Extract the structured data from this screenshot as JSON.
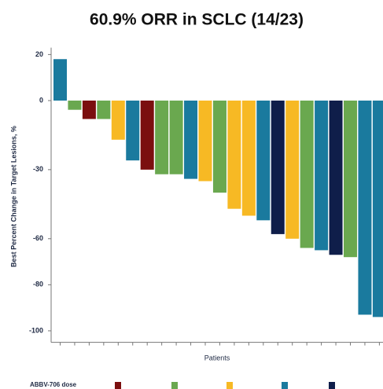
{
  "chart_data": {
    "type": "bar",
    "title": "60.9% ORR in SCLC (14/23)",
    "ylabel": "Best Percent Change in Target Lesions, %",
    "xlabel": "Patients",
    "legend_title": "ABBV-706 dose",
    "categories": [
      null,
      null,
      null,
      null,
      null,
      null,
      null,
      null,
      null,
      null,
      null,
      null,
      null,
      null,
      null,
      null,
      null,
      null,
      null,
      null,
      null,
      null,
      null
    ],
    "values": [
      18,
      -4,
      -8,
      -8,
      -17,
      -26,
      -30,
      -32,
      -32,
      -34,
      -35,
      -40,
      -47,
      -50,
      -52,
      -58,
      -60,
      -64,
      -65,
      -67,
      -68,
      -93,
      -94
    ],
    "colors": [
      "#1a7a9e",
      "#6aa84f",
      "#7b0f0f",
      "#6aa84f",
      "#f7b924",
      "#1a7a9e",
      "#7b0f0f",
      "#6aa84f",
      "#6aa84f",
      "#1a7a9e",
      "#f7b924",
      "#6aa84f",
      "#f7b924",
      "#f7b924",
      "#1a7a9e",
      "#0f1e4a",
      "#f7b924",
      "#6aa84f",
      "#1a7a9e",
      "#0f1e4a",
      "#6aa84f",
      "#1a7a9e",
      "#1a7a9e"
    ],
    "ylim": [
      -105,
      23
    ],
    "yticks": [
      20,
      0,
      -30,
      -60,
      -80,
      -100
    ]
  }
}
